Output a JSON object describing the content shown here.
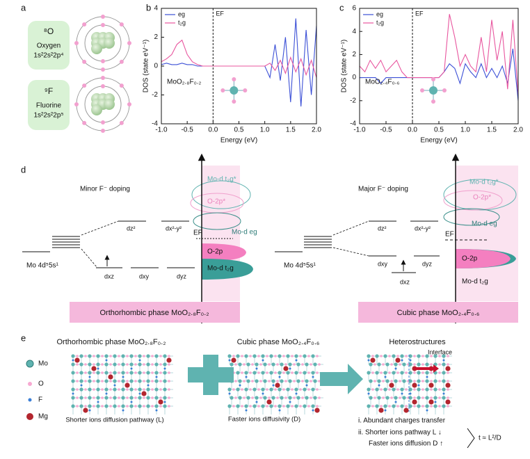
{
  "panel_labels": [
    "a",
    "b",
    "c",
    "d",
    "e"
  ],
  "atoms": [
    {
      "symbol": "⁸O",
      "name": "Oxygen",
      "config": "1s²2s²2p⁴"
    },
    {
      "symbol": "⁹F",
      "name": "Fluorine",
      "config": "1s²2s²2p⁵"
    }
  ],
  "chart_data": [
    {
      "type": "line",
      "x": [
        -1.0,
        -0.9,
        -0.8,
        -0.7,
        -0.6,
        -0.5,
        -0.4,
        -0.3,
        -0.2,
        -0.1,
        0.0,
        0.1,
        0.2,
        0.3,
        0.4,
        0.5,
        0.6,
        0.7,
        0.8,
        0.9,
        1.0,
        1.1,
        1.2,
        1.3,
        1.4,
        1.5,
        1.6,
        1.7,
        1.8,
        1.9,
        2.0
      ],
      "series": [
        {
          "name": "eɡ",
          "color": "#3b4fd6",
          "values": [
            0.1,
            0.2,
            0.1,
            0.1,
            0.2,
            0.1,
            0.1,
            0,
            0,
            0,
            0,
            0,
            0,
            0,
            0,
            0,
            0,
            0,
            0,
            0,
            0,
            -0.8,
            1.5,
            -1.0,
            2.0,
            -2.5,
            3.3,
            -2.8,
            2.5,
            -2.0,
            2.8
          ]
        },
        {
          "name": "t₂ɡ",
          "color": "#e8559e",
          "values": [
            0.3,
            0.5,
            0.8,
            1.5,
            1.8,
            0.8,
            0.3,
            0.1,
            0,
            0,
            0,
            0,
            0,
            0,
            0,
            0,
            0,
            0,
            0,
            0,
            0,
            0.2,
            -0.3,
            0.4,
            -0.5,
            0.6,
            -0.4,
            0.5,
            -0.6,
            0.4,
            -0.8
          ]
        }
      ],
      "xlim": [
        -1.0,
        2.0
      ],
      "xticks": [
        {
          "value": -1.0,
          "label": "-1.0"
        },
        {
          "value": -0.5,
          "label": "-0.5"
        },
        {
          "value": 0.0,
          "label": "0.0"
        },
        {
          "value": 0.5,
          "label": "0.5"
        },
        {
          "value": 1.0,
          "label": "1.0"
        },
        {
          "value": 1.5,
          "label": "1.5"
        },
        {
          "value": 2.0,
          "label": "2.0"
        }
      ],
      "ylim": [
        -4,
        4
      ],
      "yticks": [
        -4,
        -2,
        0,
        2,
        4
      ],
      "xlabel": "Energy (eV)",
      "ylabel": "DOS (state eV⁻¹)",
      "fermi_label": "EF",
      "annotation": "MoO₂.₈F₀.₂"
    },
    {
      "type": "line",
      "x": [
        -1.0,
        -0.9,
        -0.8,
        -0.7,
        -0.6,
        -0.5,
        -0.4,
        -0.3,
        -0.2,
        -0.1,
        0.0,
        0.1,
        0.2,
        0.3,
        0.4,
        0.5,
        0.6,
        0.7,
        0.8,
        0.9,
        1.0,
        1.1,
        1.2,
        1.3,
        1.4,
        1.5,
        1.6,
        1.7,
        1.8,
        1.9,
        2.0
      ],
      "series": [
        {
          "name": "eɡ",
          "color": "#3b4fd6",
          "values": [
            0,
            0,
            0,
            0,
            -0.5,
            0,
            0,
            0,
            0,
            0,
            0,
            0,
            0,
            0,
            0,
            0,
            0.5,
            1.2,
            0.8,
            -0.5,
            1.2,
            0.5,
            0,
            1.2,
            0,
            0.8,
            0,
            1.0,
            -0.5,
            2.5,
            -2.0
          ]
        },
        {
          "name": "t₂ɡ",
          "color": "#e8559e",
          "values": [
            1.0,
            0.5,
            1.5,
            0.8,
            1.5,
            0.5,
            1.0,
            1.5,
            0.5,
            0,
            0,
            0,
            0,
            0,
            0,
            0,
            0.5,
            5.5,
            3.5,
            1.0,
            2.0,
            1.0,
            0.5,
            3.5,
            0.5,
            5.0,
            1.5,
            4.0,
            -1.0,
            5.0,
            -1.5
          ]
        }
      ],
      "xlim": [
        -1.0,
        2.0
      ],
      "xticks": [
        {
          "value": -1.0,
          "label": "-1.0"
        },
        {
          "value": -0.5,
          "label": "-0.5"
        },
        {
          "value": 0.0,
          "label": "0.0"
        },
        {
          "value": 0.5,
          "label": "0.5"
        },
        {
          "value": 1.0,
          "label": "1.0"
        },
        {
          "value": 1.5,
          "label": "1.5"
        },
        {
          "value": 2.0,
          "label": "2.0"
        }
      ],
      "ylim": [
        -4,
        6
      ],
      "yticks": [
        -4,
        -2,
        0,
        2,
        4,
        6
      ],
      "xlabel": "Energy (eV)",
      "ylabel": "DOS (state eV⁻¹)",
      "fermi_label": "EF",
      "annotation": "MoO₂.₄F₀.₆"
    }
  ],
  "panel_d": {
    "left": {
      "title": "Minor F⁻ doping",
      "atomic": "Mo 4d⁵5s¹",
      "levels": [
        "dz²",
        "dx²-y²",
        "dxz",
        "dxy",
        "dyz"
      ],
      "bands": [
        "Mo-d t₂ɡ*",
        "O-2p*",
        "Mo-d eɡ",
        "O-2p",
        "Mo-d t₂ɡ"
      ],
      "fermi": "EF",
      "phase": "Orthorhombic phase MoO₂.₈F₀.₂"
    },
    "right": {
      "title": "Major F⁻ doping",
      "atomic": "Mo 4d⁵5s¹",
      "levels": [
        "dz²",
        "dx²-y²",
        "dxy",
        "dxz",
        "dyz"
      ],
      "bands": [
        "Mo-d t₂ɡ*",
        "O-2p*",
        "Mo-d eɡ",
        "O-2p",
        "Mo-d t₂ɡ"
      ],
      "fermi": "EF",
      "phase": "Cubic phase MoO₂.₄F₀.₆"
    }
  },
  "panel_e": {
    "titles": [
      "Orthorhombic phase MoO₂.₈F₀.₂",
      "Cubic phase MoO₂.₄F₀.₆",
      "Heterostructures"
    ],
    "legend": [
      "Mo",
      "O",
      "F",
      "Mg"
    ],
    "captions": [
      "Shorter ions diffusion pathway (L)",
      "Faster ions diffusivity (D)"
    ],
    "interface": "Interface",
    "notes": [
      "i.  Abundant charges transfer",
      "ii. Shorter ions pathway L ↓",
      "Faster ions diffusion D ↑"
    ],
    "formula": "t ≈ L²/D"
  }
}
